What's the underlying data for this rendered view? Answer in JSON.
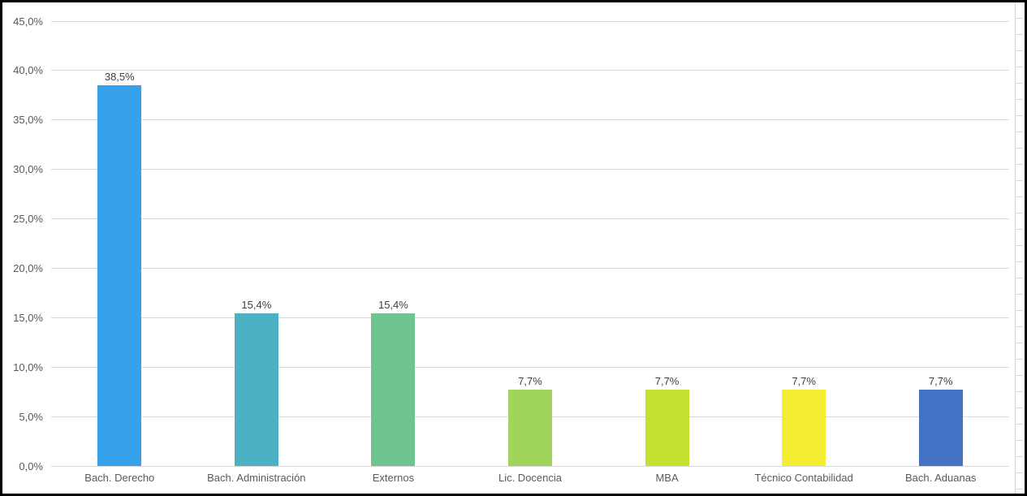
{
  "chart_data": {
    "type": "bar",
    "categories": [
      "Bach. Derecho",
      "Bach. Administración",
      "Externos",
      "Lic. Docencia",
      "MBA",
      "Técnico Contabilidad",
      "Bach. Aduanas"
    ],
    "values": [
      38.5,
      15.4,
      15.4,
      7.7,
      7.7,
      7.7,
      7.7
    ],
    "value_labels": [
      "38,5%",
      "15,4%",
      "15,4%",
      "7,7%",
      "7,7%",
      "7,7%",
      "7,7%"
    ],
    "bar_colors": [
      "#36A2EC",
      "#4BB1C3",
      "#6FC591",
      "#A1D45B",
      "#C6E02F",
      "#F3EE33",
      "#4472C4"
    ],
    "title": "",
    "xlabel": "",
    "ylabel": "",
    "ylim": [
      0,
      45
    ],
    "ytick_step": 5,
    "ytick_labels": [
      "0,0%",
      "5,0%",
      "10,0%",
      "15,0%",
      "20,0%",
      "25,0%",
      "30,0%",
      "35,0%",
      "40,0%",
      "45,0%"
    ],
    "grid": true,
    "legend": false,
    "decimal_separator": ","
  },
  "colors": {
    "background": "#ffffff",
    "border": "#000000",
    "gridline": "#d9d9d9",
    "axis_text": "#595959",
    "data_label_text": "#404040"
  }
}
